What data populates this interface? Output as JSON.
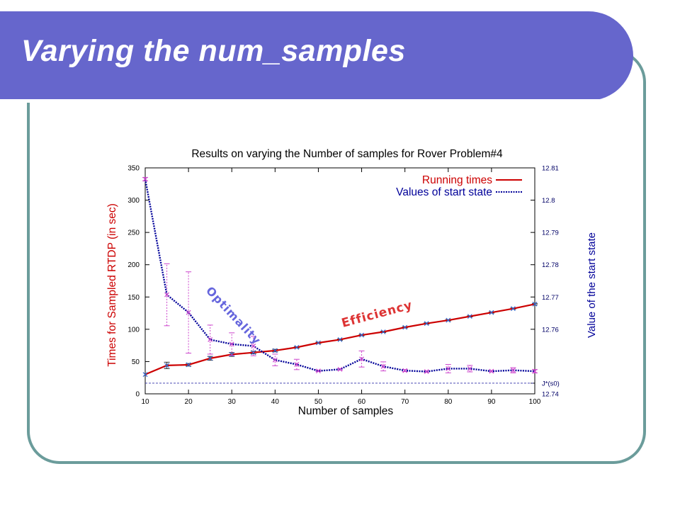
{
  "slide": {
    "title": "Varying the num_samples"
  },
  "chart_data": {
    "type": "line",
    "title": "Results on varying the Number of samples for Rover Problem#4",
    "xlabel": "Number of samples",
    "ylabel": "Times for Sampled RTDP (in sec)",
    "y2label": "Value of the start state",
    "xlim": [
      10,
      100
    ],
    "ylim": [
      0,
      350
    ],
    "y2lim": [
      12.74,
      12.81
    ],
    "x_ticks": [
      10,
      20,
      30,
      40,
      50,
      60,
      70,
      80,
      90,
      100
    ],
    "y_ticks": [
      0,
      50,
      100,
      150,
      200,
      250,
      300,
      350
    ],
    "y2_ticks": [
      "12.74",
      "J*(s0)",
      "12.76",
      "12.77",
      "12.78",
      "12.79",
      "12.8",
      "12.81"
    ],
    "y2_tick_values": [
      12.74,
      12.7433,
      12.76,
      12.77,
      12.78,
      12.79,
      12.8,
      12.81
    ],
    "reference_line": {
      "label": "J*(s0)",
      "value": 12.7433
    },
    "legend_position": "top-right",
    "grid": false,
    "series": [
      {
        "name": "Running times",
        "axis": "left",
        "color": "#cc0000",
        "x": [
          10,
          15,
          20,
          25,
          30,
          35,
          40,
          45,
          50,
          55,
          60,
          65,
          70,
          75,
          80,
          85,
          90,
          95,
          100
        ],
        "y": [
          30,
          44,
          45,
          55,
          61,
          64,
          67,
          72,
          79,
          84,
          91,
          96,
          103,
          109,
          114,
          120,
          126,
          132,
          139
        ],
        "err": [
          0,
          5,
          2,
          3,
          3,
          2,
          2,
          1,
          1,
          1,
          1,
          1,
          1,
          1,
          1,
          1,
          1,
          1,
          1
        ]
      },
      {
        "name": "Values of start state",
        "axis": "right",
        "color": "#000099",
        "x": [
          10,
          15,
          20,
          25,
          30,
          35,
          40,
          45,
          50,
          55,
          60,
          65,
          70,
          75,
          80,
          85,
          90,
          95,
          100
        ],
        "y": [
          12.8065,
          12.7707,
          12.7652,
          12.7568,
          12.7554,
          12.7548,
          12.7505,
          12.7491,
          12.7471,
          12.7476,
          12.7508,
          12.7485,
          12.7472,
          12.7469,
          12.7478,
          12.7478,
          12.747,
          12.7473,
          12.747
        ],
        "err": [
          0.0005,
          0.0096,
          0.0126,
          0.0045,
          0.0035,
          0.003,
          0.0018,
          0.0016,
          0.0002,
          0.0002,
          0.0025,
          0.0014,
          0.0003,
          0.0002,
          0.0013,
          0.001,
          0.0002,
          0.0008,
          0.0005
        ]
      }
    ],
    "annotations": [
      {
        "text": "Optimality",
        "color": "#6666dd"
      },
      {
        "text": "Efficiency",
        "color": "#dd3333"
      }
    ]
  }
}
